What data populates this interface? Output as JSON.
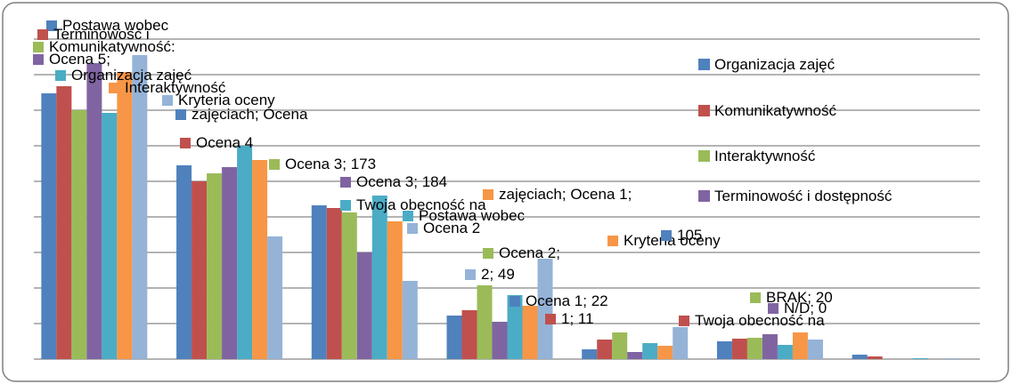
{
  "chart_data": {
    "type": "bar",
    "title": "",
    "xlabel": "",
    "ylabel": "",
    "ylim": [
      0,
      360
    ],
    "grid": true,
    "legend_position": "right",
    "categories": [
      "Ocena 5",
      "Ocena 4",
      "Ocena 3",
      "Ocena 2",
      "Ocena 1",
      "BRAK",
      "N/D"
    ],
    "series": [
      {
        "name": "Organizacja zajęć",
        "color": "#4F81BD",
        "values": [
          299,
          218,
          173,
          49,
          11,
          20,
          5
        ]
      },
      {
        "name": "Komunikatywność",
        "color": "#C0504D",
        "values": [
          307,
          200,
          170,
          55,
          22,
          23,
          3
        ]
      },
      {
        "name": "Interaktywność",
        "color": "#9BBB59",
        "values": [
          280,
          209,
          165,
          83,
          30,
          24,
          0
        ]
      },
      {
        "name": "Terminowość i dostępność",
        "color": "#8064A2",
        "values": [
          333,
          216,
          120,
          42,
          8,
          28,
          0
        ]
      },
      {
        "name": "",
        "color": "#4BACC6",
        "values": [
          277,
          240,
          184,
          72,
          18,
          16,
          1
        ]
      },
      {
        "name": "",
        "color": "#F79646",
        "values": [
          323,
          224,
          155,
          60,
          15,
          30,
          0
        ]
      },
      {
        "name": "Twoja obecność na",
        "color": "#95B3D7",
        "values": [
          342,
          138,
          88,
          113,
          36,
          22,
          1
        ]
      }
    ],
    "labels": [
      "Postawa wobec",
      "Terminowość i",
      "Komunikatywność:",
      "Ocena 5;",
      "Organizacja zajęć",
      "Interaktywność",
      "Kryteria oceny",
      "zajęciach; Ocena",
      "Ocena 4",
      "Ocena 3; 173",
      "Ocena 3; 184",
      "Twoja obecność na",
      "zajęciach; Ocena 1;",
      "Ocena 2",
      "Ocena 1; 22",
      "1; 11",
      "BRAK; 20",
      "N/D; 0",
      "Postawa wobec",
      "Kryteria oceny",
      "2; 49",
      "105",
      "Twoja obecność na",
      "Ocena 2;"
    ]
  }
}
